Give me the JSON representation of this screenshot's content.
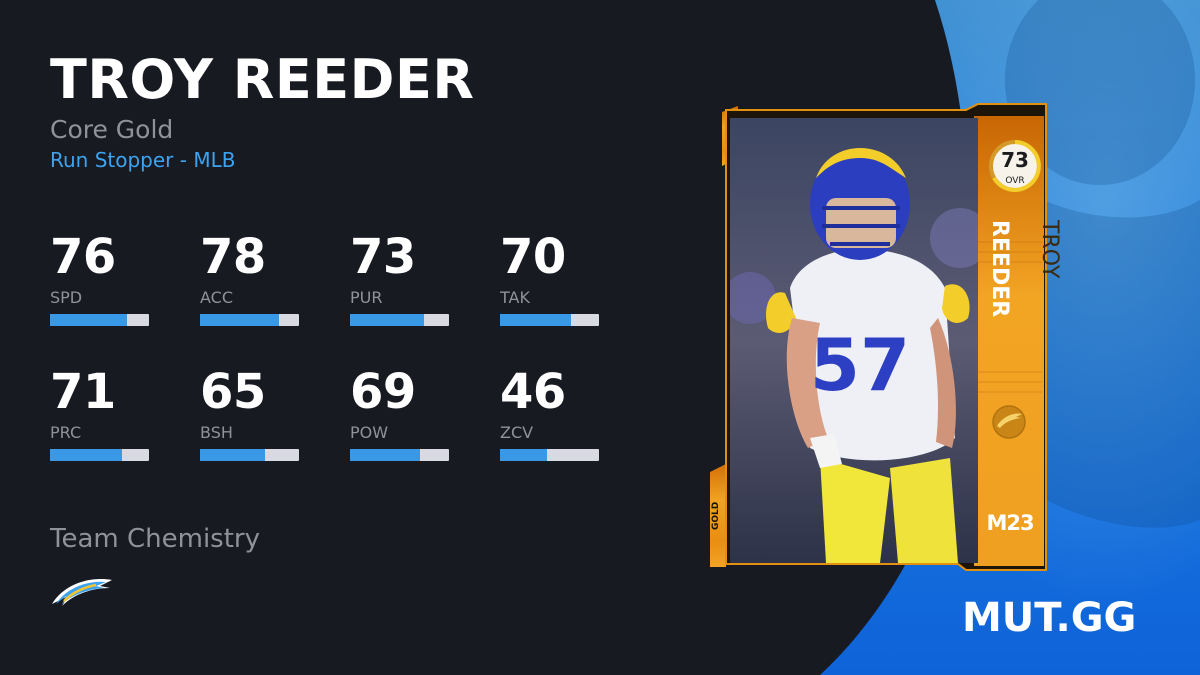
{
  "player": {
    "name": "TROY REEDER",
    "program": "Core Gold",
    "archetype": "Run Stopper - MLB"
  },
  "stats": [
    {
      "value": "76",
      "label": "SPD",
      "fill": 0.78
    },
    {
      "value": "78",
      "label": "ACC",
      "fill": 0.8
    },
    {
      "value": "73",
      "label": "PUR",
      "fill": 0.75
    },
    {
      "value": "70",
      "label": "TAK",
      "fill": 0.72
    },
    {
      "value": "71",
      "label": "PRC",
      "fill": 0.73
    },
    {
      "value": "65",
      "label": "BSH",
      "fill": 0.66
    },
    {
      "value": "69",
      "label": "POW",
      "fill": 0.71
    },
    {
      "value": "46",
      "label": "ZCV",
      "fill": 0.47
    }
  ],
  "chemistry": {
    "title": "Team Chemistry",
    "team_icon": "chargers-bolt-icon"
  },
  "card": {
    "ovr": "73",
    "ovr_label": "OVR",
    "first_name": "TROY",
    "last_name": "REEDER",
    "year": "M23",
    "tier": "GOLD",
    "jersey_number": "57",
    "team_badge_icon": "chargers-bolt-icon"
  },
  "brand": "MUT.GG",
  "colors": {
    "background": "#181a22",
    "accent_blue": "#3ea3ee",
    "bar_fill": "#3a99e6",
    "bar_track": "#d8d9e3",
    "panel_blue": "#1f7fe0",
    "card_gold": "#e8900e"
  }
}
